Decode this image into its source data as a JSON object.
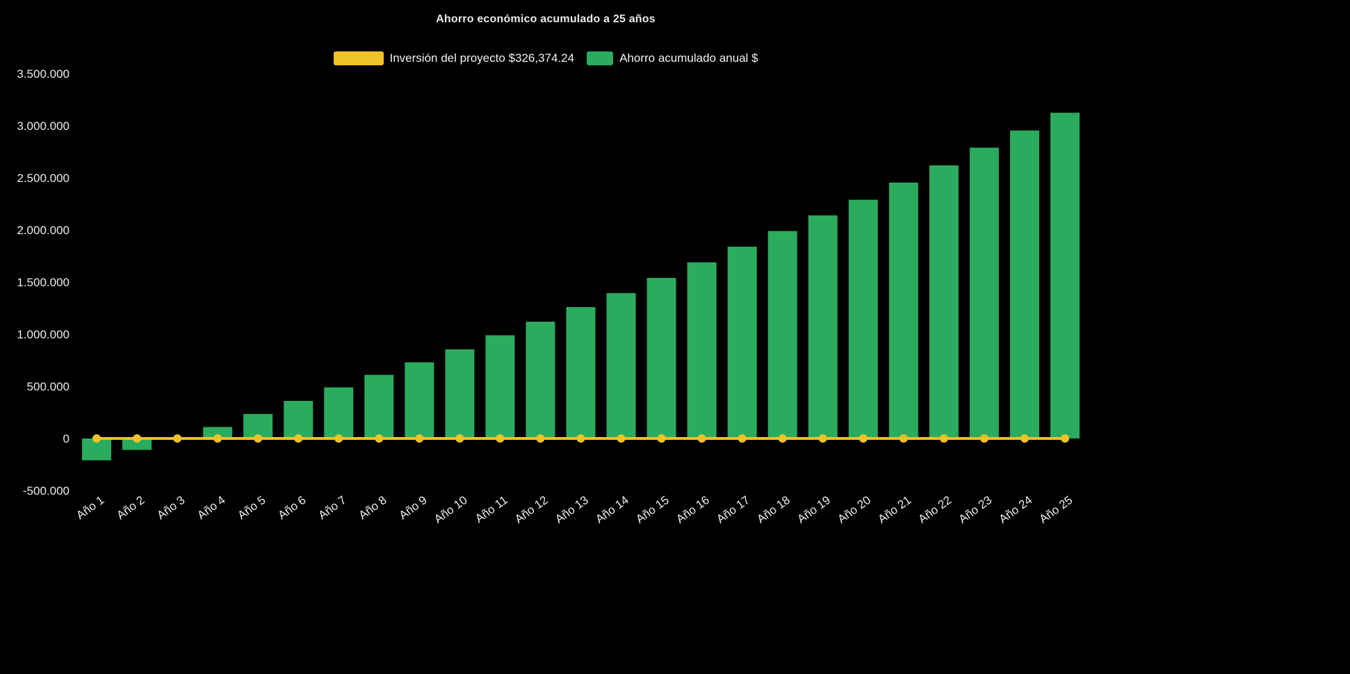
{
  "colors": {
    "background": "#000000",
    "text": "#ECECEC",
    "bar_green": "#2BAB5D",
    "line_yellow": "#EFC228"
  },
  "chart_data": {
    "type": "bar",
    "title": "Ahorro económico acumulado a 25 años",
    "categories": [
      "Año 1",
      "Año 2",
      "Año 3",
      "Año 4",
      "Año 5",
      "Año 6",
      "Año 7",
      "Año 8",
      "Año 9",
      "Año 10",
      "Año 11",
      "Año 12",
      "Año 13",
      "Año 14",
      "Año 15",
      "Año 16",
      "Año 17",
      "Año 18",
      "Año 19",
      "Año 20",
      "Año 21",
      "Año 22",
      "Año 23",
      "Año 24",
      "Año 25"
    ],
    "series": [
      {
        "name": "Inversión del proyecto $326,374.24",
        "type": "line",
        "color": "#EFC228",
        "investment_value": 326374.24,
        "plotted_value": 0
      },
      {
        "name": "Ahorro acumulado anual $",
        "type": "bar",
        "color": "#2BAB5D",
        "values": [
          -210000,
          -110000,
          10000,
          110000,
          235000,
          360000,
          490000,
          610000,
          730000,
          855000,
          990000,
          1120000,
          1260000,
          1395000,
          1540000,
          1690000,
          1840000,
          1990000,
          2140000,
          2290000,
          2455000,
          2620000,
          2790000,
          2955000,
          3125000
        ]
      }
    ],
    "y_axis": {
      "range": [
        -500000,
        3500000
      ],
      "ticks": [
        -500000,
        0,
        500000,
        1000000,
        1500000,
        2000000,
        2500000,
        3000000,
        3500000
      ],
      "tick_labels": [
        "-500.000",
        "0",
        "500.000",
        "1.000.000",
        "1.500.000",
        "2.000.000",
        "2.500.000",
        "3.000.000",
        "3.500.000"
      ]
    },
    "x_axis": {
      "label_rotation_deg": -36
    },
    "grid": false,
    "legend_position": "top",
    "background": "#000000"
  }
}
